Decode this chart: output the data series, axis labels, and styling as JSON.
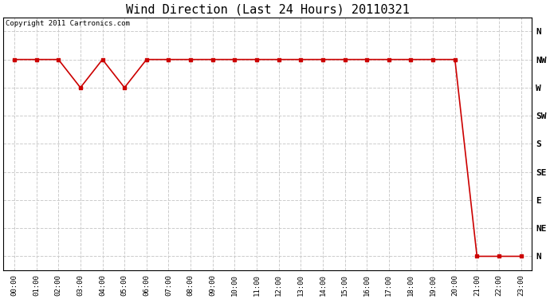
{
  "title": "Wind Direction (Last 24 Hours) 20110321",
  "copyright_text": "Copyright 2011 Cartronics.com",
  "background_color": "#ffffff",
  "plot_bg_color": "#ffffff",
  "grid_color": "#cccccc",
  "line_color": "#cc0000",
  "marker_color": "#cc0000",
  "hours": [
    0,
    1,
    2,
    3,
    4,
    5,
    6,
    7,
    8,
    9,
    10,
    11,
    12,
    13,
    14,
    15,
    16,
    17,
    18,
    19,
    20,
    21,
    22,
    23
  ],
  "wind_dirs": [
    7,
    7,
    7,
    6,
    7,
    6,
    7,
    7,
    7,
    7,
    7,
    7,
    7,
    7,
    7,
    7,
    7,
    7,
    7,
    7,
    7,
    0,
    0,
    0
  ],
  "ytick_labels": [
    "N",
    "NE",
    "E",
    "SE",
    "S",
    "SW",
    "W",
    "NW",
    "N"
  ],
  "ytick_values": [
    0,
    1,
    2,
    3,
    4,
    5,
    6,
    7,
    8
  ],
  "xlim": [
    -0.5,
    23.5
  ],
  "ylim": [
    -0.5,
    8.5
  ],
  "figsize": [
    6.9,
    3.75
  ],
  "dpi": 100
}
